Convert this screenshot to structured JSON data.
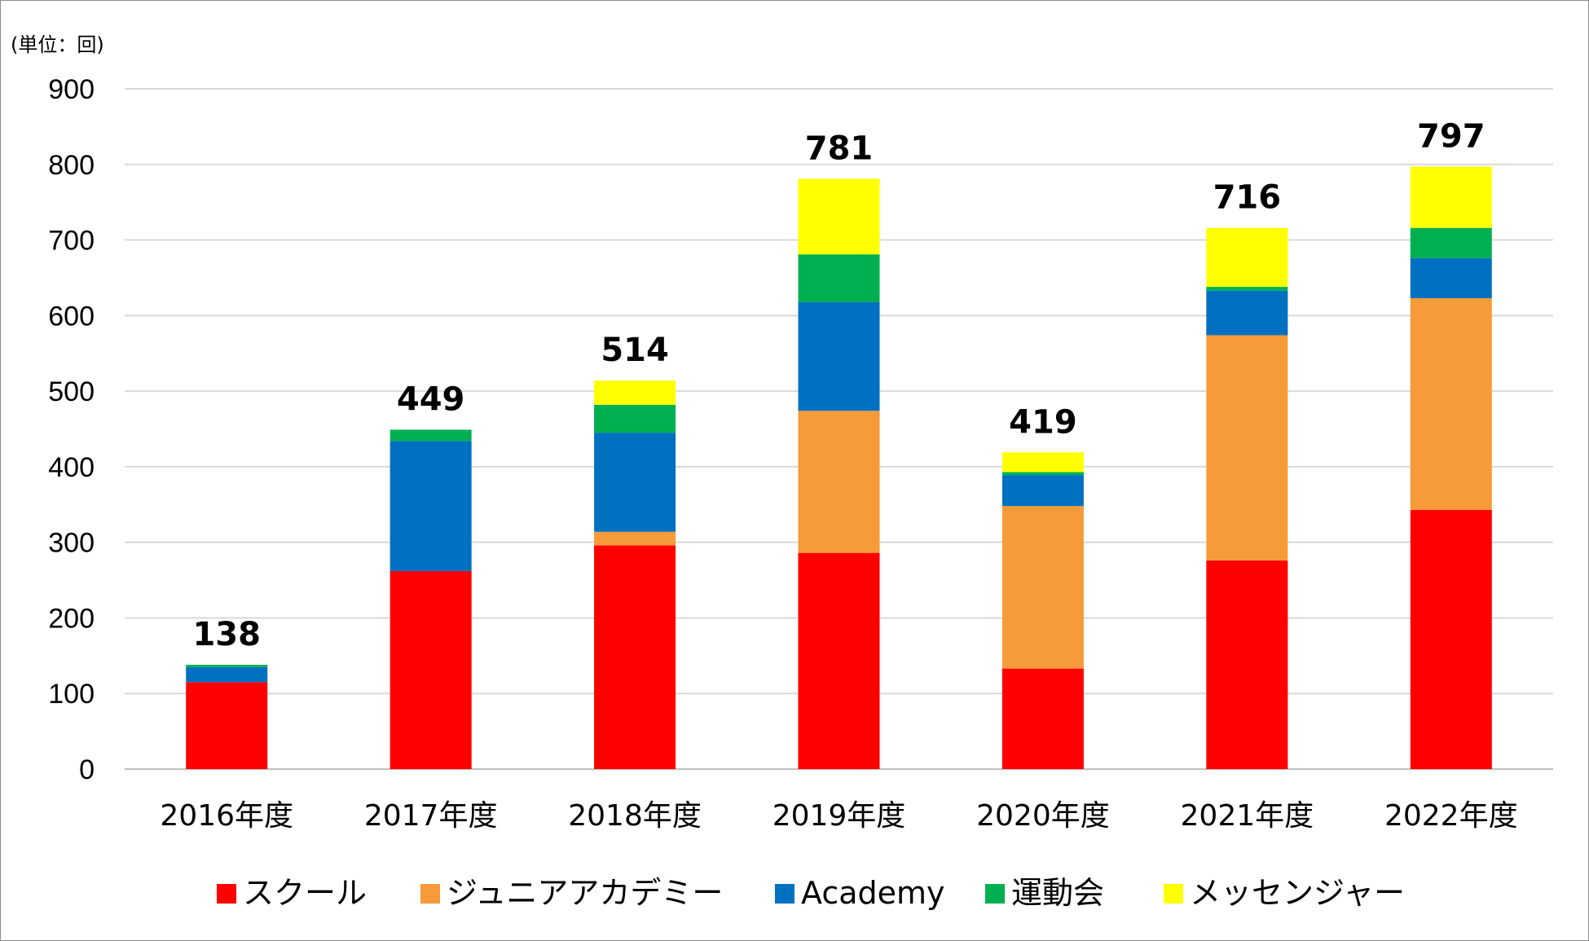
{
  "chart_data": {
    "type": "bar",
    "stacked": true,
    "unit_label": "(単位：回)",
    "categories": [
      "2016年度",
      "2017年度",
      "2018年度",
      "2019年度",
      "2020年度",
      "2021年度",
      "2022年度"
    ],
    "series": [
      {
        "name": "スクール",
        "color": "#ff0000",
        "values": [
          115,
          262,
          296,
          286,
          133,
          276,
          343
        ]
      },
      {
        "name": "ジュニアアカデミー",
        "color": "#f79a3a",
        "values": [
          0,
          0,
          18,
          188,
          215,
          298,
          280
        ]
      },
      {
        "name": "Academy",
        "color": "#0070c0",
        "values": [
          20,
          172,
          131,
          144,
          41,
          59,
          53
        ]
      },
      {
        "name": "運動会",
        "color": "#00b050",
        "values": [
          3,
          15,
          37,
          63,
          4,
          5,
          40
        ]
      },
      {
        "name": "メッセンジャー",
        "color": "#ffff00",
        "values": [
          0,
          0,
          32,
          100,
          26,
          78,
          81
        ]
      }
    ],
    "totals": [
      138,
      449,
      514,
      781,
      419,
      716,
      797
    ],
    "yticks": [
      0,
      100,
      200,
      300,
      400,
      500,
      600,
      700,
      800,
      900
    ],
    "ylim": [
      0,
      900
    ],
    "grid": true,
    "legend_position": "bottom"
  }
}
